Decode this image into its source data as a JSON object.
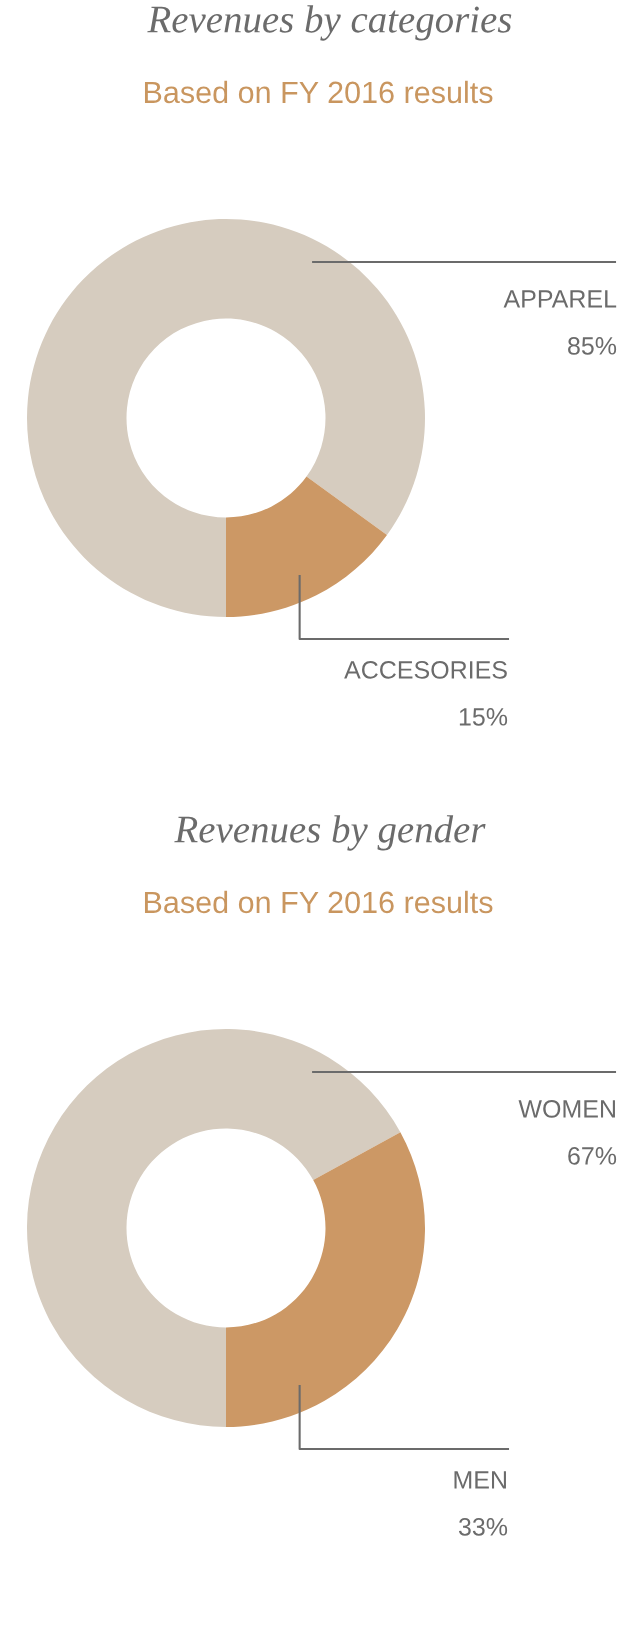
{
  "chart_data": [
    {
      "type": "donut",
      "title": "Revenues by categories",
      "subtitle": "Based on FY 2016 results",
      "categories": [
        "APPAREL",
        "ACCESORIES"
      ],
      "values": [
        85,
        15
      ],
      "colors": [
        "#d6ccbf",
        "#cc9865"
      ],
      "value_labels": [
        "85%",
        "15%"
      ]
    },
    {
      "type": "donut",
      "title": "Revenues by gender",
      "subtitle": "Based on FY 2016 results",
      "categories": [
        "WOMEN",
        "MEN"
      ],
      "values": [
        67,
        33
      ],
      "colors": [
        "#d6ccbf",
        "#cc9865"
      ],
      "value_labels": [
        "67%",
        "33%"
      ]
    }
  ]
}
